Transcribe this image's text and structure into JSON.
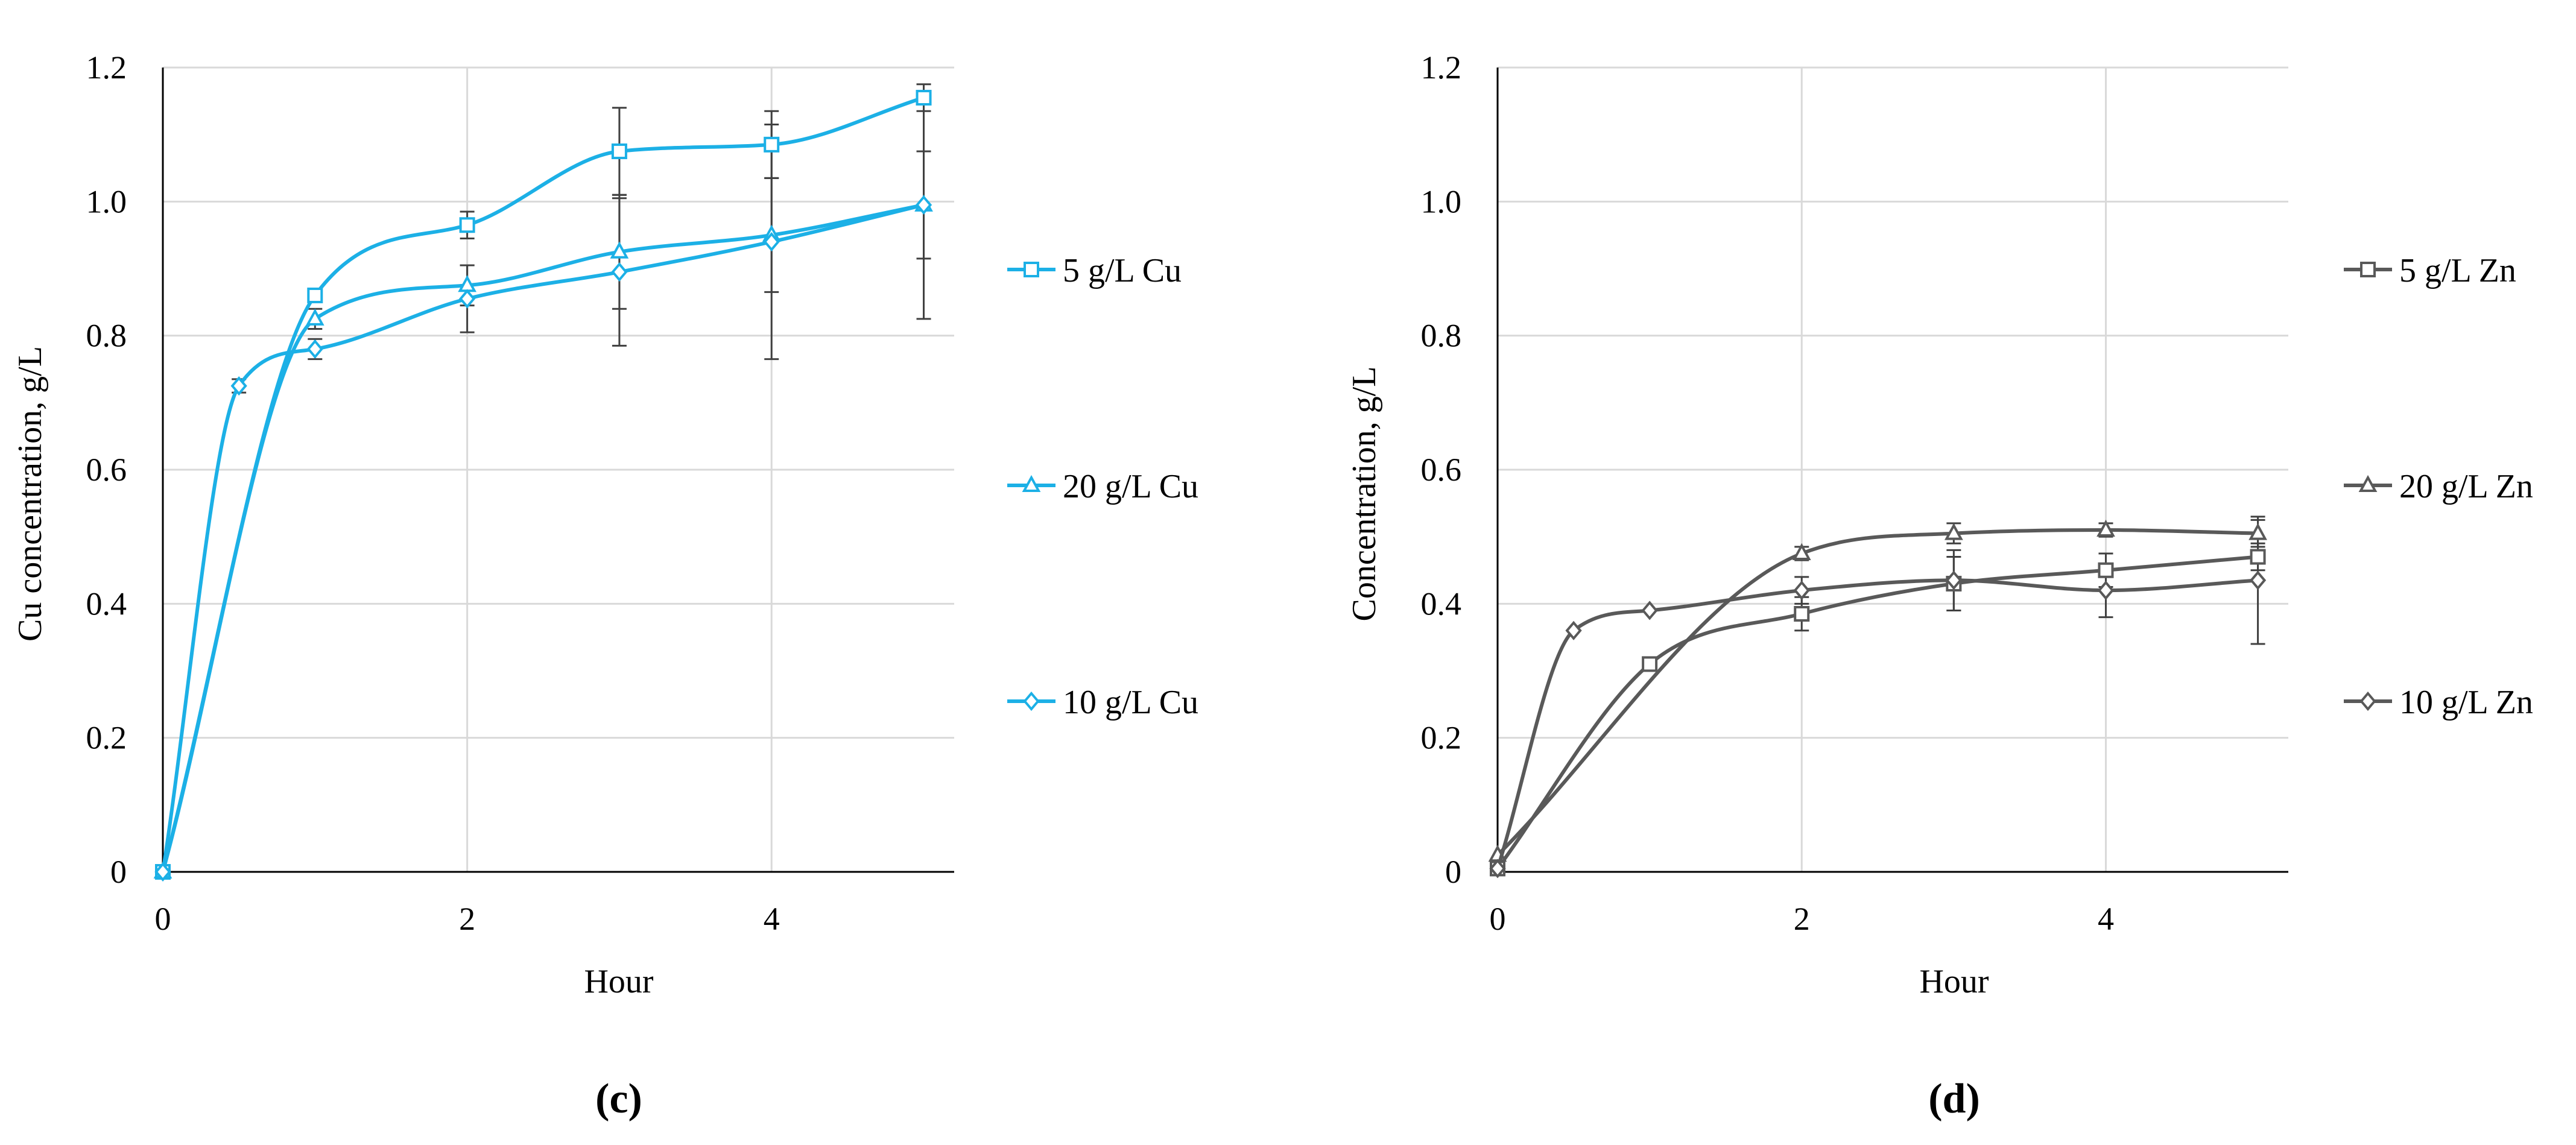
{
  "chart_data": [
    {
      "type": "line",
      "panel_label": "(c)",
      "xlabel": "Hour",
      "ylabel": "Cu concentration, g/L",
      "xlim": [
        0,
        5.2
      ],
      "ylim": [
        0,
        1.2
      ],
      "x_ticks": [
        "0",
        "2",
        "4"
      ],
      "y_ticks": [
        "0",
        "0.2",
        "0.4",
        "0.6",
        "0.8",
        "1.0",
        "1.2"
      ],
      "color": "#1CB0E6",
      "grid": true,
      "legend_position": "right",
      "series": [
        {
          "name": "5 g/L  Cu",
          "marker": "square",
          "x": [
            0,
            1,
            2,
            3,
            4,
            5
          ],
          "y": [
            0,
            0.86,
            0.965,
            1.075,
            1.085,
            1.155
          ],
          "err": [
            0,
            0,
            0.02,
            0.065,
            0.05,
            0.02
          ]
        },
        {
          "name": "20 g/L Cu",
          "marker": "triangle",
          "x": [
            0,
            1,
            2,
            3,
            4,
            5
          ],
          "y": [
            0,
            0.825,
            0.875,
            0.925,
            0.95,
            0.995
          ],
          "err": [
            0,
            0.015,
            0.03,
            0.085,
            0.085,
            0.08
          ]
        },
        {
          "name": "10 g/L Cu",
          "marker": "diamond",
          "x": [
            0,
            0.5,
            1,
            2,
            3,
            4,
            5
          ],
          "y": [
            0,
            0.725,
            0.78,
            0.855,
            0.895,
            0.94,
            0.995
          ],
          "err": [
            0,
            0.01,
            0.015,
            0.05,
            0.11,
            0.175,
            0.17
          ]
        }
      ]
    },
    {
      "type": "line",
      "panel_label": "(d)",
      "xlabel": "Hour",
      "ylabel": "Concentration, g/L",
      "xlim": [
        0,
        5.2
      ],
      "ylim": [
        0,
        1.2
      ],
      "x_ticks": [
        "0",
        "2",
        "4"
      ],
      "y_ticks": [
        "0",
        "0.2",
        "0.4",
        "0.6",
        "0.8",
        "1.0",
        "1.2"
      ],
      "color": "#595959",
      "grid": true,
      "legend_position": "right",
      "series": [
        {
          "name": "5 g/L Zn",
          "marker": "square",
          "x": [
            0,
            1,
            2,
            3,
            4,
            5
          ],
          "y": [
            0.005,
            0.31,
            0.385,
            0.43,
            0.45,
            0.47
          ],
          "err": [
            0,
            0,
            0.025,
            0.04,
            0.025,
            0.02
          ]
        },
        {
          "name": "20 g/L Zn",
          "marker": "triangle",
          "x": [
            0,
            2,
            3,
            4,
            5
          ],
          "y": [
            0.025,
            0.475,
            0.505,
            0.51,
            0.505
          ],
          "err": [
            0,
            0.01,
            0.015,
            0.01,
            0.02
          ]
        },
        {
          "name": "10 g/L Zn",
          "marker": "diamond",
          "x": [
            0,
            0.5,
            1,
            2,
            3,
            4,
            5
          ],
          "y": [
            0.005,
            0.36,
            0.39,
            0.42,
            0.435,
            0.42,
            0.435
          ],
          "err": [
            0,
            0,
            0,
            0.02,
            0.045,
            0.04,
            0.095
          ]
        }
      ]
    }
  ]
}
